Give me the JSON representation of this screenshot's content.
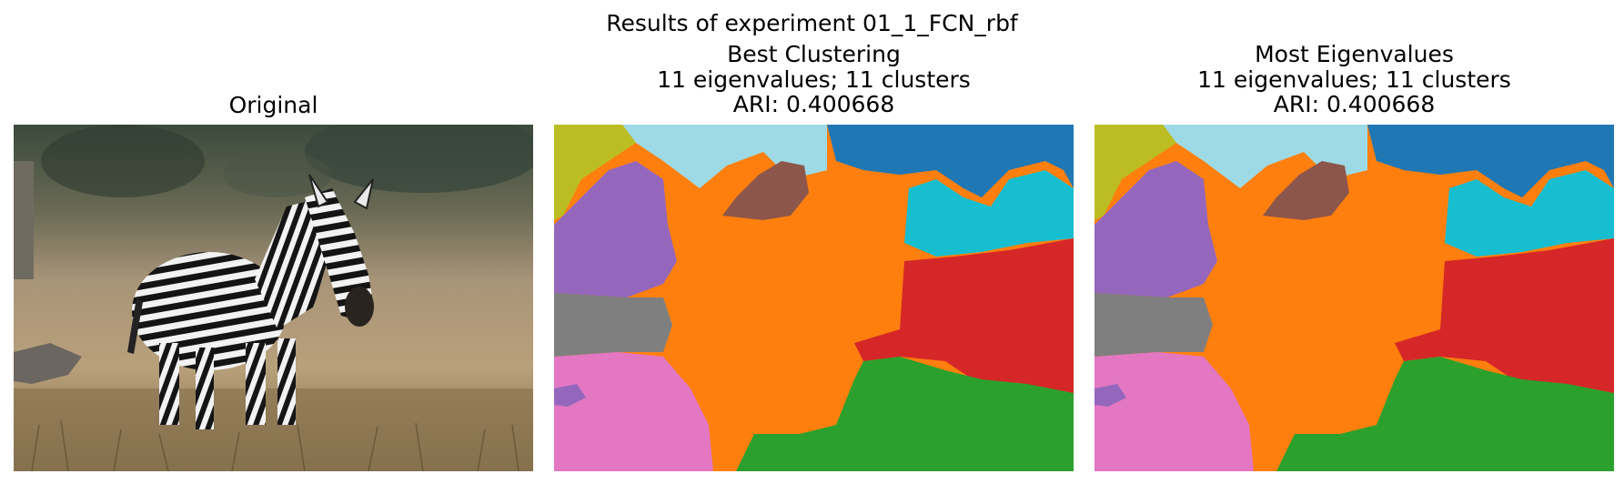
{
  "figure": {
    "suptitle": "Results of experiment 01_1_FCN_rbf"
  },
  "panels": [
    {
      "title_lines": [
        "Original"
      ],
      "content": "photograph"
    },
    {
      "title_lines": [
        "Best Clustering",
        "11 eigenvalues; 11 clusters",
        "ARI: 0.400668"
      ],
      "content": "segmentation",
      "eigenvalues": 11,
      "clusters": 11,
      "ari": 0.400668
    },
    {
      "title_lines": [
        "Most Eigenvalues",
        "11 eigenvalues; 11 clusters",
        "ARI: 0.400668"
      ],
      "content": "segmentation",
      "eigenvalues": 11,
      "clusters": 11,
      "ari": 0.400668
    }
  ],
  "palette": {
    "blue": "#1f77b4",
    "orange": "#ff7f0e",
    "green": "#2ca02c",
    "red": "#d62728",
    "purple": "#9467bd",
    "brown": "#8c564b",
    "pink": "#e377c2",
    "gray": "#7f7f7f",
    "olive": "#bcbd22",
    "cyan": "#17becf",
    "light_cyan": "#9edae5"
  }
}
